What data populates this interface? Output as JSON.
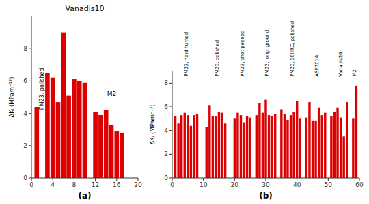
{
  "chart_data": [
    {
      "type": "bar",
      "title": "Vanadis10",
      "xlabel": "(a)",
      "ylabel": "ΔKᵢ (MPam⁻¹²)",
      "x": [
        1,
        3,
        4,
        5,
        6,
        7,
        8,
        9,
        10,
        12,
        13,
        14,
        15,
        16,
        17
      ],
      "values": [
        4.4,
        6.5,
        6.2,
        4.7,
        9.0,
        5.1,
        6.1,
        6.0,
        5.9,
        4.1,
        3.9,
        4.2,
        3.3,
        2.9,
        2.8
      ],
      "color": "#dd0000",
      "xlim": [
        0,
        20
      ],
      "ylim": [
        0,
        10
      ],
      "xticks": [
        0,
        4,
        8,
        12,
        16,
        20
      ],
      "yticks": [
        0,
        2,
        4,
        6,
        8
      ],
      "annotations": [
        {
          "text": "PM23, polished",
          "x": 2.0,
          "y": 6.8
        },
        {
          "text": "M2",
          "x": 14.2,
          "y": 5.2
        }
      ]
    },
    {
      "type": "bar",
      "xlabel": "(b)",
      "ylabel": "ΔKᵢ (MPam⁻¹²)",
      "x": [
        1,
        2,
        3,
        4,
        5,
        6,
        7,
        8,
        11,
        12,
        13,
        14,
        15,
        16,
        17,
        20,
        21,
        22,
        23,
        24,
        25,
        27,
        28,
        29,
        30,
        31,
        32,
        33,
        35,
        36,
        37,
        38,
        39,
        40,
        41,
        43,
        44,
        45,
        46,
        47,
        48,
        49,
        51,
        52,
        53,
        54,
        55,
        56,
        58,
        59
      ],
      "values": [
        5.2,
        4.6,
        5.3,
        5.5,
        5.3,
        4.4,
        5.3,
        5.4,
        4.3,
        6.1,
        5.2,
        5.2,
        5.6,
        5.5,
        4.6,
        5.0,
        5.5,
        5.3,
        4.7,
        5.2,
        5.1,
        5.3,
        6.3,
        5.5,
        6.6,
        5.3,
        5.2,
        5.4,
        5.8,
        5.4,
        4.9,
        5.3,
        5.6,
        6.5,
        5.0,
        5.1,
        6.4,
        4.8,
        4.8,
        5.9,
        5.3,
        5.5,
        5.2,
        5.6,
        5.9,
        5.1,
        3.5,
        6.4,
        5.0,
        7.8
      ],
      "color": "#dd0000",
      "xlim": [
        0,
        60
      ],
      "ylim": [
        0,
        9
      ],
      "xticks": [
        0,
        10,
        20,
        30,
        40,
        50,
        60
      ],
      "yticks": [
        0,
        2,
        4,
        6,
        8
      ],
      "annotations": [
        {
          "text": "PM23, hard turned",
          "x": 4.5,
          "y": 8.55
        },
        {
          "text": "PM23, polished",
          "x": 14.5,
          "y": 8.55
        },
        {
          "text": "PM23, shot peened",
          "x": 22.5,
          "y": 8.55
        },
        {
          "text": "PM23, long. ground",
          "x": 30.5,
          "y": 8.55
        },
        {
          "text": "PM23, 66HRC, polished",
          "x": 38.5,
          "y": 8.55
        },
        {
          "text": "ASP2014",
          "x": 46.5,
          "y": 8.55
        },
        {
          "text": "Vanadis10",
          "x": 54.0,
          "y": 8.55
        },
        {
          "text": "M2",
          "x": 58.5,
          "y": 8.55
        }
      ]
    }
  ]
}
